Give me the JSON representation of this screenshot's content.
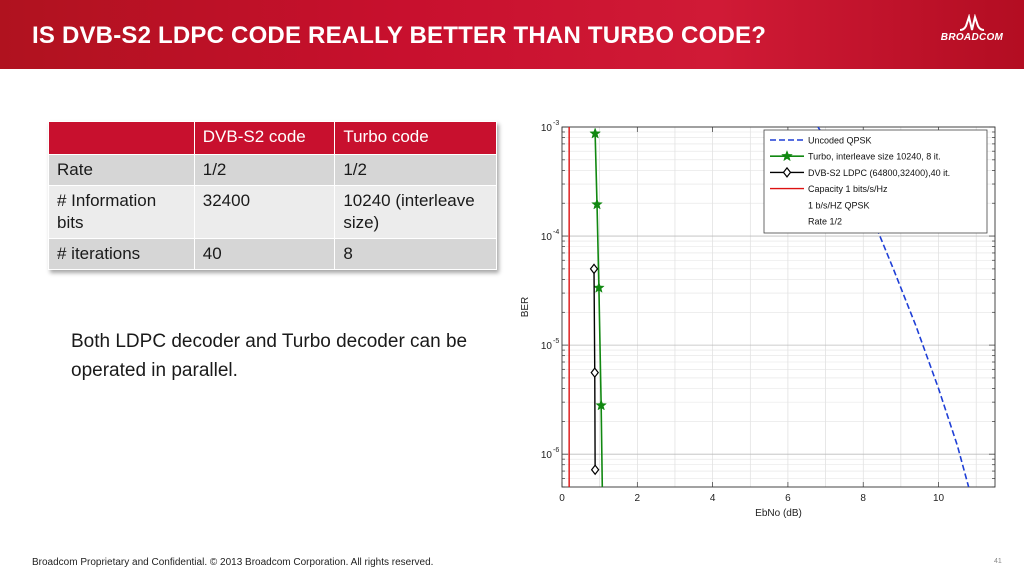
{
  "slide": {
    "title": "IS DVB-S2 LDPC CODE REALLY BETTER THAN TURBO CODE?",
    "logo_text": "BROADCOM",
    "body_text": "Both LDPC decoder and Turbo decoder can be operated in parallel.",
    "footer": "Broadcom Proprietary and Confidential.  © 2013 Broadcom Corporation.  All rights reserved.",
    "page_number": "41"
  },
  "table": {
    "headers": [
      "",
      "DVB-S2 code",
      "Turbo code"
    ],
    "rows": [
      [
        "Rate",
        "1/2",
        "1/2"
      ],
      [
        "# Information bits",
        "32400",
        "10240 (interleave size)"
      ],
      [
        "# iterations",
        "40",
        "8"
      ]
    ]
  },
  "colors": {
    "brand_red": "#c8102e",
    "uncoded": "#1f3fd6",
    "turbo": "#118811",
    "ldpc": "#000000",
    "capacity": "#dd1111"
  },
  "chart_data": {
    "type": "line",
    "xlabel": "EbNo (dB)",
    "ylabel": "BER",
    "xlim": [
      0,
      11.5
    ],
    "ylim": [
      5e-07,
      0.001
    ],
    "yscale": "log",
    "x_ticks": [
      "0",
      "2",
      "4",
      "6",
      "8",
      "10"
    ],
    "y_ticks": [
      {
        "base": "10",
        "exp": "-3"
      },
      {
        "base": "10",
        "exp": "-4"
      },
      {
        "base": "10",
        "exp": "-5"
      },
      {
        "base": "10",
        "exp": "-6"
      }
    ],
    "grid": true,
    "legend_position": "top-right",
    "legend": [
      "Uncoded QPSK",
      "Turbo, interleave size 10240, 8 it.",
      "DVB-S2 LDPC (64800,32400),40 it.",
      "Capacity 1 bits/s/Hz",
      "1 b/s/HZ QPSK",
      "Rate 1/2"
    ],
    "series": [
      {
        "name": "Uncoded QPSK",
        "style": "dashed",
        "x": [
          6.8,
          7.5,
          8.2,
          8.8,
          9.4,
          10.0,
          10.5,
          10.8
        ],
        "y": [
          0.001,
          0.0004,
          0.00016,
          5e-05,
          1.5e-05,
          4e-06,
          1.2e-06,
          5e-07
        ]
      },
      {
        "name": "Turbo, interleave size 10240, 8 it.",
        "marker": "star",
        "x": [
          0.88,
          0.93,
          0.98,
          1.04,
          1.07
        ],
        "y": [
          0.00087,
          0.000195,
          3.35e-05,
          2.8e-06,
          5e-07
        ],
        "marker_points": [
          0,
          1,
          2,
          3
        ]
      },
      {
        "name": "DVB-S2 LDPC (64800,32400),40 it.",
        "marker": "diamond",
        "x": [
          0.85,
          0.87,
          0.88
        ],
        "y": [
          5e-05,
          5.6e-06,
          7.2e-07
        ],
        "marker_points": [
          0,
          1,
          2
        ]
      },
      {
        "name": "Capacity 1 bits/s/Hz",
        "x": [
          0.19,
          0.19
        ],
        "y": [
          0.001,
          5e-07
        ]
      }
    ]
  }
}
